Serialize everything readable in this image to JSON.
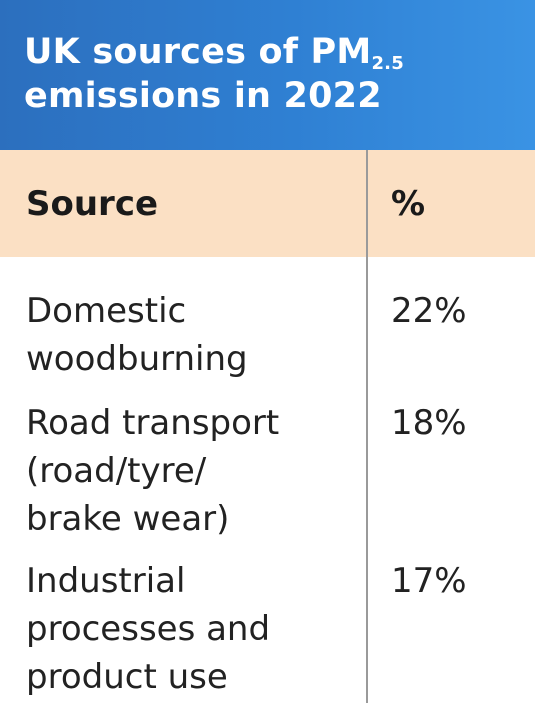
{
  "chart_data": {
    "type": "table",
    "title_line1": "UK sources of PM",
    "title_subscript": "2.5",
    "title_line2": "emissions in 2022",
    "columns": [
      "Source",
      "%"
    ],
    "rows": [
      {
        "source_lines": [
          "Domestic",
          "woodburning"
        ],
        "percent": "22%"
      },
      {
        "source_lines": [
          "Road transport",
          "(road/tyre/",
          "brake wear)"
        ],
        "percent": "18%"
      },
      {
        "source_lines": [
          "Industrial",
          "processes and",
          "product use"
        ],
        "percent": "17%"
      }
    ],
    "colors": {
      "header_bg": "#2f80d3",
      "column_header_bg": "#fbe0c4",
      "divider": "#9a9a9a"
    }
  }
}
